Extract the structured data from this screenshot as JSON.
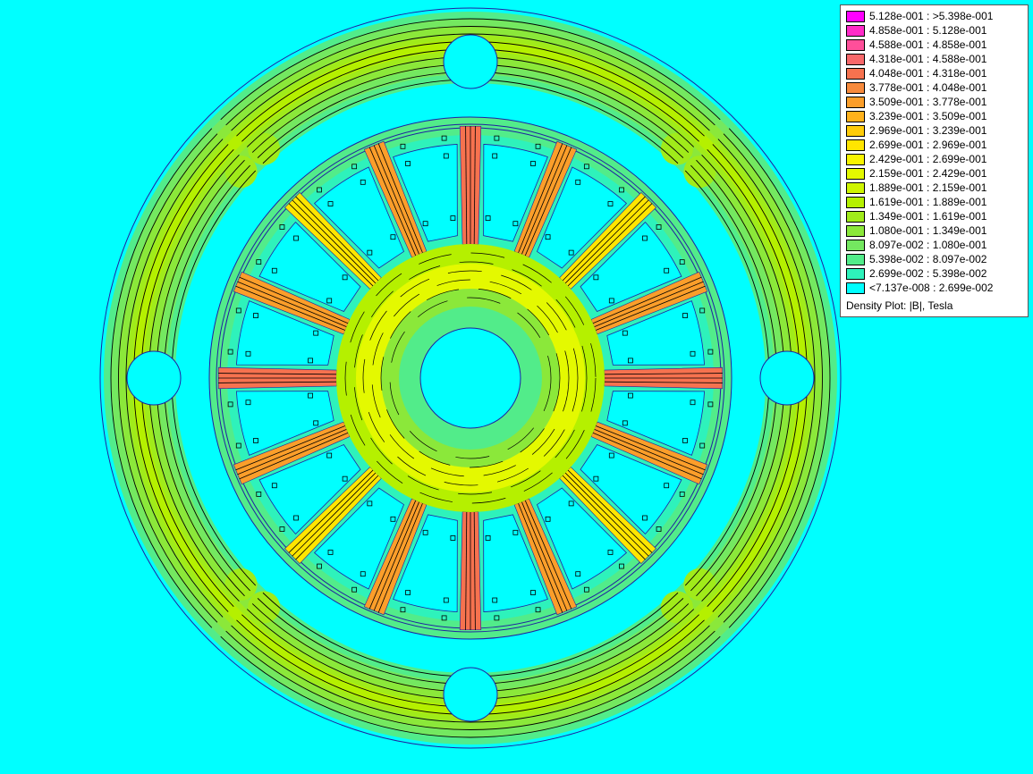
{
  "legend": {
    "entries": [
      {
        "label": "5.128e-001 : >5.398e-001",
        "color": "#ff00ff"
      },
      {
        "label": "4.858e-001 : 5.128e-001",
        "color": "#ff2bc8"
      },
      {
        "label": "4.588e-001 : 4.858e-001",
        "color": "#ff4f9a"
      },
      {
        "label": "4.318e-001 : 4.588e-001",
        "color": "#f8686a"
      },
      {
        "label": "4.048e-001 : 4.318e-001",
        "color": "#f6724f"
      },
      {
        "label": "3.778e-001 : 4.048e-001",
        "color": "#f78a3c"
      },
      {
        "label": "3.509e-001 : 3.778e-001",
        "color": "#fb9e2a"
      },
      {
        "label": "3.239e-001 : 3.509e-001",
        "color": "#ffb21c"
      },
      {
        "label": "2.969e-001 : 3.239e-001",
        "color": "#ffcc0a"
      },
      {
        "label": "2.699e-001 : 2.969e-001",
        "color": "#ffe500"
      },
      {
        "label": "2.429e-001 : 2.699e-001",
        "color": "#f9f400"
      },
      {
        "label": "2.159e-001 : 2.429e-001",
        "color": "#e4f900"
      },
      {
        "label": "1.889e-001 : 2.159e-001",
        "color": "#cff500"
      },
      {
        "label": "1.619e-001 : 1.889e-001",
        "color": "#b5f000"
      },
      {
        "label": "1.349e-001 : 1.619e-001",
        "color": "#a0eb1a"
      },
      {
        "label": "1.080e-001 : 1.349e-001",
        "color": "#8be83a"
      },
      {
        "label": "8.097e-002 : 1.080e-001",
        "color": "#74e860"
      },
      {
        "label": "5.398e-002 : 8.097e-002",
        "color": "#52ec8a"
      },
      {
        "label": "2.699e-002 : 5.398e-002",
        "color": "#2ef2bb"
      },
      {
        "label": "<7.137e-008 : 2.699e-002",
        "color": "#00ffff"
      }
    ],
    "caption": "Density Plot: |B|, Tesla"
  },
  "colors": {
    "background": "#00ffff",
    "outline": "#2020a0",
    "flux_line": "#000000"
  }
}
